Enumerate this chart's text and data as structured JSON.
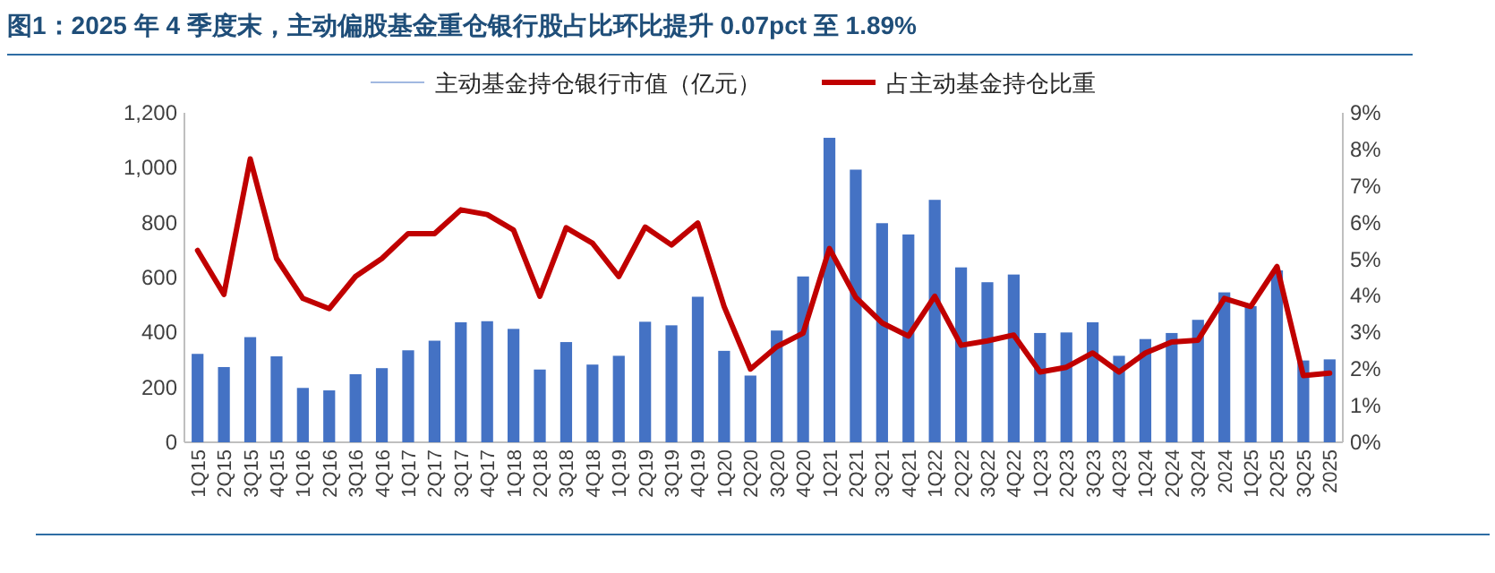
{
  "chart_data": {
    "type": "bar",
    "title": "图1：2025 年 4 季度末，主动偏股基金重仓银行股占比环比提升 0.07pct  至 1.89%",
    "categories": [
      "1Q15",
      "2Q15",
      "3Q15",
      "4Q15",
      "1Q16",
      "2Q16",
      "3Q16",
      "4Q16",
      "1Q17",
      "2Q17",
      "3Q17",
      "4Q17",
      "1Q18",
      "2Q18",
      "3Q18",
      "4Q18",
      "1Q19",
      "2Q19",
      "3Q19",
      "4Q19",
      "1Q20",
      "2Q20",
      "3Q20",
      "4Q20",
      "1Q21",
      "2Q21",
      "3Q21",
      "4Q21",
      "1Q22",
      "2Q22",
      "3Q22",
      "4Q22",
      "1Q23",
      "2Q23",
      "3Q23",
      "4Q23",
      "1Q24",
      "2Q24",
      "3Q24",
      "2024",
      "1Q25",
      "2Q25",
      "3Q25",
      "2025"
    ],
    "series": [
      {
        "name": "主动基金持仓银行市值（亿元）",
        "color": "#4472c4",
        "values": [
          322,
          274,
          383,
          313,
          198,
          189,
          248,
          270,
          335,
          370,
          437,
          441,
          413,
          265,
          365,
          283,
          315,
          439,
          426,
          530,
          333,
          243,
          407,
          604,
          1109,
          993,
          798,
          757,
          883,
          637,
          583,
          611,
          398,
          400,
          437,
          315,
          376,
          398,
          446,
          546,
          496,
          626,
          298,
          302
        ]
      },
      {
        "name": "占主动基金持仓比重",
        "type": "line",
        "axis": "y2",
        "color": "#c00000",
        "values": [
          5.24,
          4.04,
          7.74,
          5.02,
          3.93,
          3.65,
          4.53,
          5.02,
          5.7,
          5.7,
          6.35,
          6.22,
          5.8,
          3.99,
          5.86,
          5.44,
          4.53,
          5.88,
          5.39,
          5.99,
          3.71,
          2.0,
          2.61,
          2.98,
          5.29,
          3.96,
          3.26,
          2.9,
          3.99,
          2.65,
          2.77,
          2.93,
          1.92,
          2.05,
          2.44,
          1.92,
          2.44,
          2.74,
          2.79,
          3.93,
          3.71,
          4.8,
          1.82,
          1.89
        ]
      }
    ],
    "ylim": [
      0,
      1200
    ],
    "yticks": [
      0,
      200,
      400,
      600,
      800,
      {
        "value": 1000,
        "label": "1,000"
      },
      {
        "value": 1200,
        "label": "1,200"
      }
    ],
    "y2lim": [
      0,
      9
    ],
    "y2ticks": [
      {
        "value": 0,
        "label": "0%"
      },
      {
        "value": 1,
        "label": "1%"
      },
      {
        "value": 2,
        "label": "2%"
      },
      {
        "value": 3,
        "label": "3%"
      },
      {
        "value": 4,
        "label": "4%"
      },
      {
        "value": 5,
        "label": "5%"
      },
      {
        "value": 6,
        "label": "6%"
      },
      {
        "value": 7,
        "label": "7%"
      },
      {
        "value": 8,
        "label": "8%"
      },
      {
        "value": 9,
        "label": "9%"
      }
    ],
    "legend": "top",
    "marker": "none",
    "line_style": "solid"
  }
}
